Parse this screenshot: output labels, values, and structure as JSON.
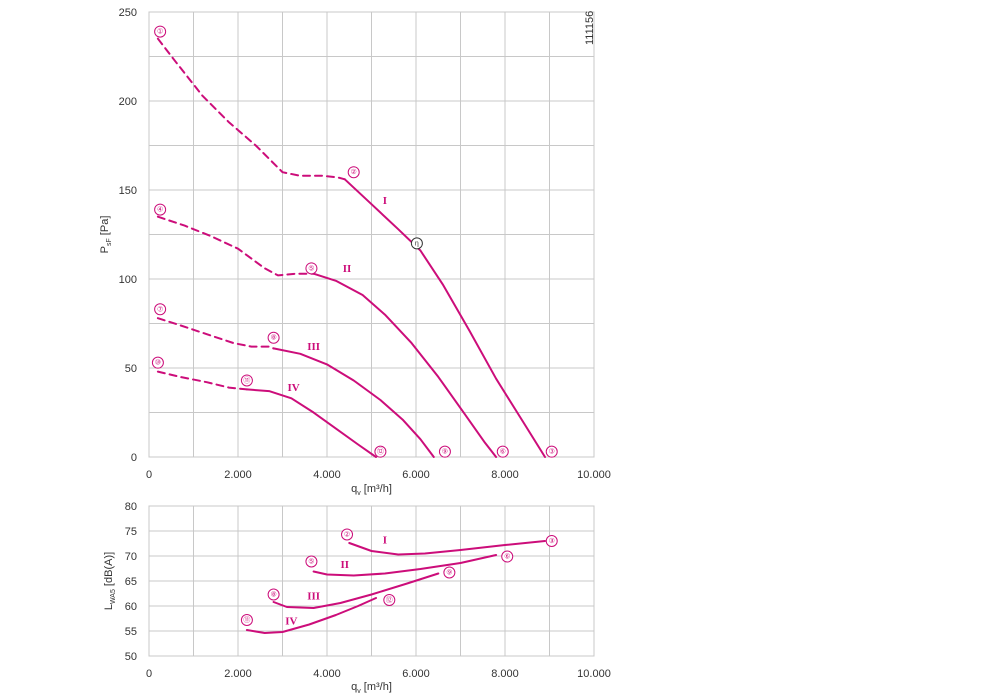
{
  "drawing_number": "111156",
  "colors": {
    "curve": "#cc0d7a",
    "grid": "#c8c8c8",
    "text": "#333333",
    "optimum_marker": "#333333"
  },
  "chart_data": [
    {
      "type": "line",
      "name": "pressure",
      "xlabel": "q",
      "xlabel_sub": "v",
      "xlabel_unit": " [m3/h]",
      "ylabel": "P",
      "ylabel_sub": "sF",
      "ylabel_unit": " [Pa]",
      "xlim": [
        0,
        10000
      ],
      "ylim": [
        0,
        250
      ],
      "x_ticks": [
        0,
        2000,
        4000,
        6000,
        8000,
        10000
      ],
      "x_tick_labels": [
        "0",
        "2.000",
        "4.000",
        "6.000",
        "8.000",
        "10.000"
      ],
      "y_ticks": [
        0,
        50,
        100,
        150,
        200,
        250
      ],
      "y_tick_labels": [
        "0",
        "50",
        "100",
        "150",
        "200",
        "250"
      ],
      "grid": true,
      "series": [
        {
          "name": "I",
          "dashed": [
            [
              200,
              235
            ],
            [
              600,
              222
            ],
            [
              1200,
              203
            ],
            [
              1800,
              188
            ],
            [
              2400,
              175
            ],
            [
              3000,
              160
            ],
            [
              3400,
              158
            ],
            [
              3900,
              158
            ],
            [
              4250,
              157
            ],
            [
              4400,
              156
            ]
          ],
          "solid": [
            [
              4400,
              156
            ],
            [
              5000,
              142
            ],
            [
              5600,
              128
            ],
            [
              6100,
              116
            ],
            [
              6600,
              97
            ],
            [
              7200,
              71
            ],
            [
              7800,
              44
            ],
            [
              8400,
              20
            ],
            [
              8900,
              0
            ]
          ],
          "label_at": [
            5300,
            142
          ]
        },
        {
          "name": "II",
          "dashed": [
            [
              200,
              135
            ],
            [
              800,
              130
            ],
            [
              1400,
              124
            ],
            [
              2000,
              117
            ],
            [
              2600,
              106
            ],
            [
              2900,
              102
            ],
            [
              3300,
              103
            ],
            [
              3700,
              103
            ]
          ],
          "solid": [
            [
              3700,
              103
            ],
            [
              4200,
              99
            ],
            [
              4800,
              91
            ],
            [
              5300,
              80
            ],
            [
              5900,
              64
            ],
            [
              6500,
              45
            ],
            [
              7100,
              24
            ],
            [
              7550,
              8
            ],
            [
              7800,
              0
            ]
          ],
          "label_at": [
            4450,
            104
          ]
        },
        {
          "name": "III",
          "dashed": [
            [
              200,
              78
            ],
            [
              700,
              74
            ],
            [
              1300,
              69
            ],
            [
              1900,
              64
            ],
            [
              2300,
              62
            ],
            [
              2700,
              62
            ],
            [
              2800,
              61
            ]
          ],
          "solid": [
            [
              2800,
              61
            ],
            [
              3400,
              58
            ],
            [
              4000,
              52
            ],
            [
              4600,
              43
            ],
            [
              5200,
              32
            ],
            [
              5700,
              21
            ],
            [
              6100,
              10
            ],
            [
              6400,
              0
            ]
          ],
          "label_at": [
            3700,
            60
          ]
        },
        {
          "name": "IV",
          "dashed": [
            [
              200,
              48
            ],
            [
              700,
              45
            ],
            [
              1300,
              42
            ],
            [
              1800,
              39
            ],
            [
              2200,
              38
            ]
          ],
          "solid": [
            [
              2200,
              38
            ],
            [
              2700,
              37
            ],
            [
              3200,
              33
            ],
            [
              3700,
              25
            ],
            [
              4200,
              16
            ],
            [
              4700,
              7
            ],
            [
              5100,
              0
            ]
          ],
          "label_at": [
            3250,
            37
          ]
        }
      ],
      "markers": [
        {
          "label": "①",
          "at": [
            250,
            239
          ]
        },
        {
          "label": "②",
          "at": [
            4600,
            160
          ]
        },
        {
          "label": "③",
          "at": [
            9050,
            3
          ]
        },
        {
          "label": "④",
          "at": [
            250,
            139
          ]
        },
        {
          "label": "⑤",
          "at": [
            3650,
            106
          ]
        },
        {
          "label": "⑥",
          "at": [
            7950,
            3
          ]
        },
        {
          "label": "⑦",
          "at": [
            250,
            83
          ]
        },
        {
          "label": "⑧",
          "at": [
            2800,
            67
          ]
        },
        {
          "label": "⑨",
          "at": [
            6650,
            3
          ]
        },
        {
          "label": "⑩",
          "at": [
            200,
            53
          ]
        },
        {
          "label": "⑪",
          "at": [
            2200,
            43
          ]
        },
        {
          "label": "⑫",
          "at": [
            5200,
            3
          ]
        }
      ],
      "optimum_marker": {
        "label": "η",
        "at": [
          6020,
          120
        ]
      }
    },
    {
      "type": "line",
      "name": "sound",
      "xlabel": "q",
      "xlabel_sub": "v",
      "xlabel_unit": " [m3/h]",
      "ylabel": "L",
      "ylabel_sub": "WA5",
      "ylabel_unit": " [dB(A)]",
      "xlim": [
        0,
        10000
      ],
      "ylim": [
        50,
        80
      ],
      "x_ticks": [
        0,
        2000,
        4000,
        6000,
        8000,
        10000
      ],
      "x_tick_labels": [
        "0",
        "2.000",
        "4.000",
        "6.000",
        "8.000",
        "10.000"
      ],
      "y_ticks": [
        50,
        55,
        60,
        65,
        70,
        75,
        80
      ],
      "y_tick_labels": [
        "50",
        "55",
        "60",
        "65",
        "70",
        "75",
        "80"
      ],
      "grid": true,
      "series": [
        {
          "name": "I",
          "solid": [
            [
              4500,
              72.6
            ],
            [
              5000,
              71.0
            ],
            [
              5600,
              70.3
            ],
            [
              6200,
              70.5
            ],
            [
              7000,
              71.2
            ],
            [
              8000,
              72.2
            ],
            [
              8900,
              73.0
            ]
          ],
          "label_at": [
            5300,
            72.5
          ]
        },
        {
          "name": "II",
          "solid": [
            [
              3700,
              66.9
            ],
            [
              4000,
              66.3
            ],
            [
              4600,
              66.1
            ],
            [
              5300,
              66.5
            ],
            [
              6100,
              67.4
            ],
            [
              7000,
              68.6
            ],
            [
              7800,
              70.2
            ]
          ],
          "label_at": [
            4400,
            67.6
          ]
        },
        {
          "name": "III",
          "solid": [
            [
              2800,
              60.8
            ],
            [
              3100,
              59.8
            ],
            [
              3700,
              59.6
            ],
            [
              4300,
              60.6
            ],
            [
              5000,
              62.3
            ],
            [
              5800,
              64.5
            ],
            [
              6500,
              66.5
            ]
          ],
          "label_at": [
            3700,
            61.3
          ]
        },
        {
          "name": "IV",
          "solid": [
            [
              2200,
              55.2
            ],
            [
              2600,
              54.6
            ],
            [
              3000,
              54.8
            ],
            [
              3600,
              56.3
            ],
            [
              4200,
              58.2
            ],
            [
              4700,
              60.0
            ],
            [
              5100,
              61.6
            ]
          ],
          "label_at": [
            3200,
            56.3
          ]
        }
      ],
      "markers": [
        {
          "label": "②",
          "at": [
            4450,
            74.3
          ]
        },
        {
          "label": "③",
          "at": [
            9050,
            73.0
          ]
        },
        {
          "label": "⑤",
          "at": [
            3650,
            68.9
          ]
        },
        {
          "label": "⑥",
          "at": [
            8050,
            69.9
          ]
        },
        {
          "label": "⑧",
          "at": [
            2800,
            62.3
          ]
        },
        {
          "label": "⑨",
          "at": [
            6750,
            66.7
          ]
        },
        {
          "label": "⑪",
          "at": [
            2200,
            57.2
          ]
        },
        {
          "label": "⑫",
          "at": [
            5400,
            61.2
          ]
        }
      ]
    }
  ]
}
